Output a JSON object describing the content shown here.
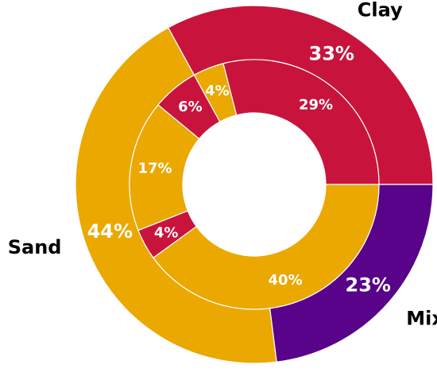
{
  "chart_data": {
    "type": "pie",
    "outer": {
      "categories": [
        "Clay",
        "Sand",
        "Mixed"
      ],
      "values": [
        33,
        44,
        23
      ],
      "labels": [
        "33%",
        "44%",
        "23%"
      ],
      "colors": [
        "#c8143c",
        "#eaa800",
        "#58038a"
      ]
    },
    "inner": {
      "slices": [
        {
          "group": "Clay",
          "value": 29,
          "label": "29%",
          "color": "#c8143c"
        },
        {
          "group": "Clay",
          "value": 4,
          "label": "4%",
          "color": "#eaa800"
        },
        {
          "group": "Mixed",
          "value": 6,
          "label": "6%",
          "color": "#c8143c"
        },
        {
          "group": "Mixed",
          "value": 17,
          "label": "17%",
          "color": "#eaa800"
        },
        {
          "group": "Sand",
          "value": 4,
          "label": "4%",
          "color": "#c8143c"
        },
        {
          "group": "Sand",
          "value": 40,
          "label": "40%",
          "color": "#eaa800"
        }
      ]
    }
  }
}
